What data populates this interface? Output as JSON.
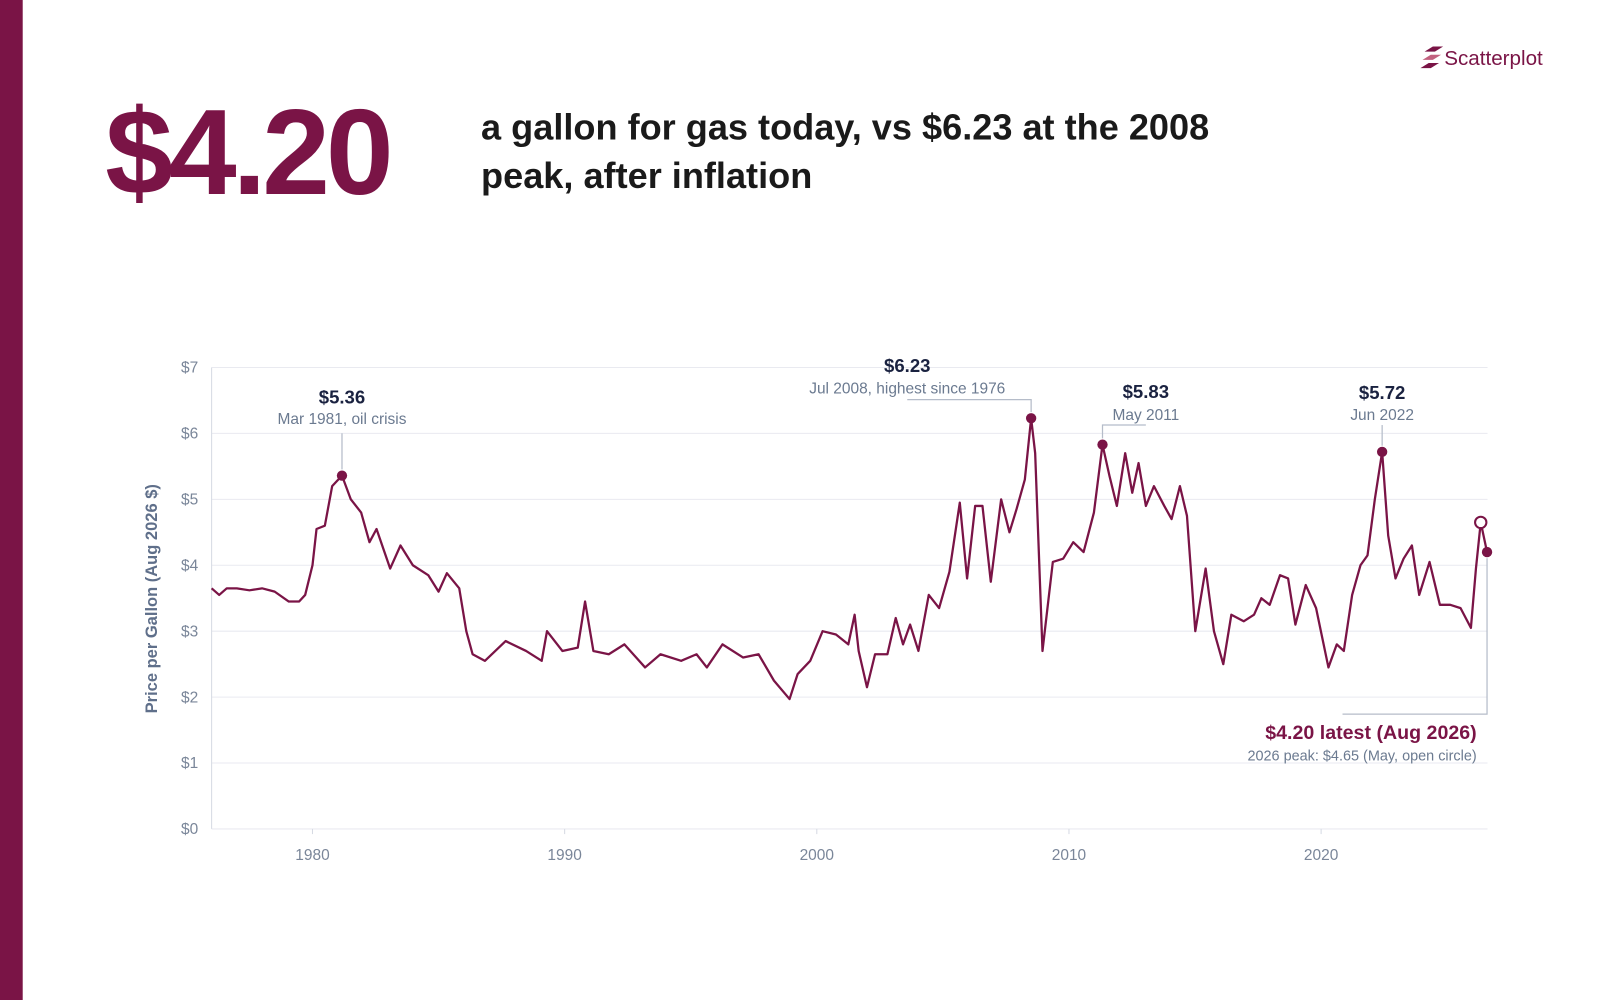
{
  "header": {
    "big_number": "$4.20",
    "headline_lines": [
      "a gallon for gas today, vs $6.23 at the 2008",
      "peak, after inflation"
    ],
    "brand": "Scatterplot"
  },
  "chart_data": {
    "type": "line",
    "y_label": "Price per Gallon (Aug 2026 $)",
    "color": "#7a1446",
    "grid": true,
    "xlim": [
      1976,
      2026.6
    ],
    "ylim": [
      0,
      7
    ],
    "xticks": [
      1980,
      1990,
      2000,
      2010,
      2020
    ],
    "yticks": [
      {
        "value": 0,
        "label": "$0"
      },
      {
        "value": 1,
        "label": "$1"
      },
      {
        "value": 2,
        "label": "$2"
      },
      {
        "value": 3,
        "label": "$3"
      },
      {
        "value": 4,
        "label": "$4"
      },
      {
        "value": 5,
        "label": "$5"
      },
      {
        "value": 6,
        "label": "$6"
      },
      {
        "value": 7,
        "label": "$7"
      }
    ],
    "x": [
      1976.0,
      1976.3,
      1976.6,
      1977.0,
      1977.5,
      1978.0,
      1978.5,
      1979.06,
      1979.47,
      1979.71,
      1980.0,
      1980.16,
      1980.49,
      1980.78,
      1981.17,
      1981.52,
      1981.93,
      1982.26,
      1982.54,
      1983.08,
      1983.49,
      1983.98,
      1984.59,
      1985.0,
      1985.33,
      1985.82,
      1986.1,
      1986.35,
      1986.84,
      1987.66,
      1988.47,
      1989.09,
      1989.3,
      1989.91,
      1990.52,
      1990.81,
      1991.14,
      1991.75,
      1992.37,
      1993.19,
      1993.8,
      1994.62,
      1995.23,
      1995.64,
      1996.26,
      1997.08,
      1997.69,
      1998.3,
      1998.92,
      1999.24,
      1999.74,
      2000.23,
      2000.76,
      2001.25,
      2001.5,
      2001.66,
      2001.99,
      2002.31,
      2002.8,
      2003.13,
      2003.42,
      2003.7,
      2004.03,
      2004.44,
      2004.85,
      2005.26,
      2005.67,
      2005.96,
      2006.28,
      2006.57,
      2006.9,
      2007.31,
      2007.64,
      2007.92,
      2008.25,
      2008.5,
      2008.66,
      2008.95,
      2009.36,
      2009.77,
      2010.17,
      2010.58,
      2010.99,
      2011.33,
      2011.61,
      2011.9,
      2012.23,
      2012.51,
      2012.76,
      2013.05,
      2013.37,
      2013.78,
      2014.07,
      2014.4,
      2014.68,
      2015.01,
      2015.42,
      2015.75,
      2016.12,
      2016.44,
      2016.93,
      2017.34,
      2017.63,
      2017.96,
      2018.37,
      2018.69,
      2018.98,
      2019.39,
      2019.8,
      2020.29,
      2020.62,
      2020.9,
      2021.23,
      2021.56,
      2021.84,
      2022.13,
      2022.42,
      2022.66,
      2022.95,
      2023.27,
      2023.6,
      2023.89,
      2024.3,
      2024.71,
      2025.12,
      2025.53,
      2025.94,
      2026.14,
      2026.33,
      2026.58
    ],
    "values": [
      3.65,
      3.55,
      3.65,
      3.65,
      3.62,
      3.65,
      3.6,
      3.45,
      3.45,
      3.55,
      4.0,
      4.55,
      4.6,
      5.2,
      5.36,
      5.0,
      4.8,
      4.35,
      4.55,
      3.95,
      4.3,
      4.0,
      3.85,
      3.6,
      3.88,
      3.65,
      3.0,
      2.65,
      2.55,
      2.85,
      2.7,
      2.55,
      3.0,
      2.7,
      2.75,
      3.45,
      2.7,
      2.65,
      2.8,
      2.45,
      2.65,
      2.55,
      2.65,
      2.45,
      2.8,
      2.6,
      2.65,
      2.25,
      1.97,
      2.35,
      2.55,
      3.0,
      2.95,
      2.8,
      3.25,
      2.7,
      2.15,
      2.65,
      2.65,
      3.2,
      2.8,
      3.1,
      2.7,
      3.55,
      3.35,
      3.9,
      4.95,
      3.8,
      4.9,
      4.9,
      3.75,
      5.0,
      4.5,
      4.85,
      5.3,
      6.23,
      5.7,
      2.7,
      4.05,
      4.1,
      4.35,
      4.2,
      4.8,
      5.83,
      5.35,
      4.9,
      5.7,
      5.1,
      5.55,
      4.9,
      5.2,
      4.9,
      4.7,
      5.2,
      4.75,
      3.0,
      3.95,
      3.0,
      2.5,
      3.25,
      3.15,
      3.25,
      3.5,
      3.4,
      3.85,
      3.8,
      3.1,
      3.7,
      3.35,
      2.45,
      2.8,
      2.7,
      3.55,
      4.0,
      4.15,
      5.0,
      5.72,
      4.45,
      3.8,
      4.1,
      4.3,
      3.55,
      4.05,
      3.4,
      3.4,
      3.35,
      3.05,
      3.95,
      4.65,
      4.2
    ],
    "annotations": [
      {
        "x": 1981.17,
        "value": 5.36,
        "label": "$5.36",
        "note": "Mar 1981, oil crisis"
      },
      {
        "x": 2008.5,
        "value": 6.23,
        "label": "$6.23",
        "note": "Jul 2008, highest since 1976"
      },
      {
        "x": 2011.33,
        "value": 5.83,
        "label": "$5.83",
        "note": "May 2011"
      },
      {
        "x": 2022.42,
        "value": 5.72,
        "label": "$5.72",
        "note": "Jun 2022"
      },
      {
        "x": 2026.58,
        "value": 4.2,
        "label": "$4.20 latest (Aug 2026)",
        "note": "2026 peak: $4.65 (May, open circle)"
      }
    ],
    "open_circle": {
      "x": 2026.33,
      "value": 4.65
    }
  }
}
